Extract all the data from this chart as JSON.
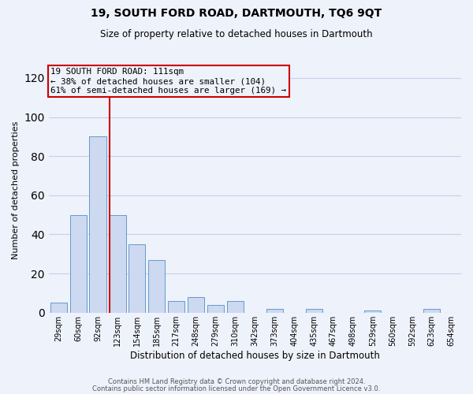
{
  "title": "19, SOUTH FORD ROAD, DARTMOUTH, TQ6 9QT",
  "subtitle": "Size of property relative to detached houses in Dartmouth",
  "xlabel": "Distribution of detached houses by size in Dartmouth",
  "ylabel": "Number of detached properties",
  "bar_labels": [
    "29sqm",
    "60sqm",
    "92sqm",
    "123sqm",
    "154sqm",
    "185sqm",
    "217sqm",
    "248sqm",
    "279sqm",
    "310sqm",
    "342sqm",
    "373sqm",
    "404sqm",
    "435sqm",
    "467sqm",
    "498sqm",
    "529sqm",
    "560sqm",
    "592sqm",
    "623sqm",
    "654sqm"
  ],
  "bar_values": [
    5,
    50,
    90,
    50,
    35,
    27,
    6,
    8,
    4,
    6,
    0,
    2,
    0,
    2,
    0,
    0,
    1,
    0,
    0,
    2,
    0
  ],
  "bar_color": "#ccd9f0",
  "bar_edge_color": "#6699cc",
  "ylim": [
    0,
    125
  ],
  "yticks": [
    0,
    20,
    40,
    60,
    80,
    100,
    120
  ],
  "vline_x": 2.58,
  "vline_color": "#cc0000",
  "annotation_title": "19 SOUTH FORD ROAD: 111sqm",
  "annotation_line1": "← 38% of detached houses are smaller (104)",
  "annotation_line2": "61% of semi-detached houses are larger (169) →",
  "annotation_box_color": "#cc0000",
  "footer1": "Contains HM Land Registry data © Crown copyright and database right 2024.",
  "footer2": "Contains public sector information licensed under the Open Government Licence v3.0.",
  "bg_color": "#eef2fb",
  "grid_color": "#c5cfe8"
}
